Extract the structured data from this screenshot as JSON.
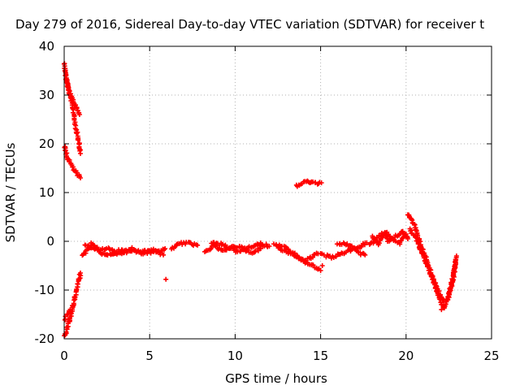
{
  "chart_data": {
    "type": "scatter",
    "title": "Day 279 of 2016, Sidereal Day-to-day VTEC variation (SDTVAR) for receiver t",
    "xlabel": "GPS time / hours",
    "ylabel": "SDTVAR / TECUs",
    "xlim": [
      0,
      25
    ],
    "ylim": [
      -20,
      40
    ],
    "xticks": [
      "0",
      "5",
      "10",
      "15",
      "20",
      "25"
    ],
    "yticks": [
      "-20",
      "-10",
      "0",
      "10",
      "20",
      "30",
      "40"
    ],
    "grid": true,
    "legend": "none",
    "marker": "+",
    "color": "#ff0000",
    "series": [
      {
        "name": "SDTVAR",
        "segments": [
          {
            "x": [
              0.02,
              0.1,
              0.25,
              0.45,
              0.65,
              0.85,
              0.95
            ],
            "y": [
              36.5,
              33.5,
              31.5,
              28.5,
              24.0,
              20.5,
              18.0
            ]
          },
          {
            "x": [
              0.1,
              0.3,
              0.5,
              0.7,
              0.9
            ],
            "y": [
              34.0,
              31.0,
              29.0,
              27.5,
              26.0
            ]
          },
          {
            "x": [
              0.02,
              0.2,
              0.45,
              0.7,
              0.95
            ],
            "y": [
              19.5,
              17.0,
              15.5,
              14.0,
              13.0
            ]
          },
          {
            "x": [
              0.02,
              0.2,
              0.4,
              0.6,
              0.8,
              0.95
            ],
            "y": [
              -19.5,
              -17.5,
              -15.0,
              -12.0,
              -9.0,
              -6.5
            ]
          },
          {
            "x": [
              0.02,
              0.2,
              0.35
            ],
            "y": [
              -16.0,
              -15.0,
              -14.0
            ]
          },
          {
            "x": [
              1.1,
              1.3,
              1.6,
              2.0,
              2.5,
              3.0,
              3.5,
              4.0,
              4.5,
              5.0,
              5.5,
              5.9
            ],
            "y": [
              -3.0,
              -2.0,
              -1.2,
              -1.8,
              -1.5,
              -2.0,
              -1.8,
              -2.0,
              -2.0,
              -2.2,
              -2.0,
              -1.5
            ]
          },
          {
            "x": [
              1.2,
              1.6,
              2.2,
              2.8,
              3.4,
              4.0,
              4.6,
              5.2,
              5.8
            ],
            "y": [
              -1.0,
              -0.5,
              -2.5,
              -2.8,
              -2.5,
              -1.5,
              -2.5,
              -1.8,
              -2.8
            ]
          },
          {
            "x": [
              5.95
            ],
            "y": [
              -7.8
            ]
          },
          {
            "x": [
              6.3,
              6.6,
              7.0,
              7.4,
              7.8
            ],
            "y": [
              -1.5,
              -0.8,
              -0.3,
              -0.5,
              -0.8
            ]
          },
          {
            "x": [
              8.2,
              8.5,
              8.8,
              9.0,
              9.3,
              9.6,
              10.0,
              10.5,
              11.0,
              11.5,
              12.0
            ],
            "y": [
              -2.0,
              -1.5,
              -0.8,
              -1.5,
              -2.0,
              -1.5,
              -1.0,
              -1.5,
              -1.2,
              -0.5,
              -1.0
            ]
          },
          {
            "x": [
              8.6,
              9.0,
              9.5,
              10.0,
              10.5,
              11.0,
              11.5
            ],
            "y": [
              -0.3,
              -0.5,
              -1.0,
              -2.0,
              -1.8,
              -2.2,
              -1.5
            ]
          },
          {
            "x": [
              12.3,
              12.7,
              13.0,
              13.4,
              13.8,
              14.2,
              14.5,
              14.8,
              15.0
            ],
            "y": [
              -0.5,
              -1.0,
              -1.5,
              -2.5,
              -3.5,
              -4.5,
              -5.0,
              -5.5,
              -6.0
            ]
          },
          {
            "x": [
              12.5,
              13.0,
              13.5,
              14.0,
              14.4,
              14.8,
              15.2
            ],
            "y": [
              -1.5,
              -2.0,
              -3.0,
              -4.0,
              -3.5,
              -2.5,
              -2.8
            ]
          },
          {
            "x": [
              15.1
            ],
            "y": [
              -5.0
            ]
          },
          {
            "x": [
              13.6,
              13.9,
              14.2,
              14.5,
              14.8,
              15.05
            ],
            "y": [
              11.3,
              12.0,
              12.3,
              12.0,
              11.8,
              12.0
            ]
          },
          {
            "x": [
              15.3,
              15.7,
              16.2,
              16.8,
              17.3,
              17.7
            ],
            "y": [
              -3.0,
              -3.3,
              -2.5,
              -1.8,
              -1.0,
              -0.3
            ]
          },
          {
            "x": [
              16.0,
              16.5,
              17.0,
              17.3,
              17.6
            ],
            "y": [
              -0.5,
              -0.5,
              -1.5,
              -2.5,
              -2.8
            ]
          },
          {
            "x": [
              17.9,
              18.2,
              18.6,
              19.0,
              19.4,
              19.8,
              20.1
            ],
            "y": [
              -0.8,
              0.5,
              1.5,
              0.0,
              1.0,
              2.0,
              0.5
            ]
          },
          {
            "x": [
              18.0,
              18.4,
              18.8,
              19.2,
              19.6,
              20.0
            ],
            "y": [
              0.8,
              -0.5,
              2.0,
              0.5,
              -0.5,
              1.5
            ]
          },
          {
            "x": [
              20.1,
              20.4,
              20.8,
              21.2,
              21.6,
              22.0,
              22.2
            ],
            "y": [
              5.5,
              4.0,
              0.0,
              -4.0,
              -8.0,
              -11.0,
              -12.5
            ]
          },
          {
            "x": [
              20.2,
              20.6,
              21.0,
              21.4,
              21.8,
              22.1
            ],
            "y": [
              2.5,
              0.5,
              -3.0,
              -6.5,
              -10.0,
              -13.0
            ]
          },
          {
            "x": [
              22.1,
              22.3,
              22.5,
              22.7,
              22.9
            ],
            "y": [
              -14.0,
              -13.0,
              -11.0,
              -8.0,
              -4.0
            ]
          },
          {
            "x": [
              22.4,
              22.6,
              22.8,
              22.95
            ],
            "y": [
              -12.5,
              -10.0,
              -7.0,
              -3.0
            ]
          }
        ]
      }
    ]
  }
}
